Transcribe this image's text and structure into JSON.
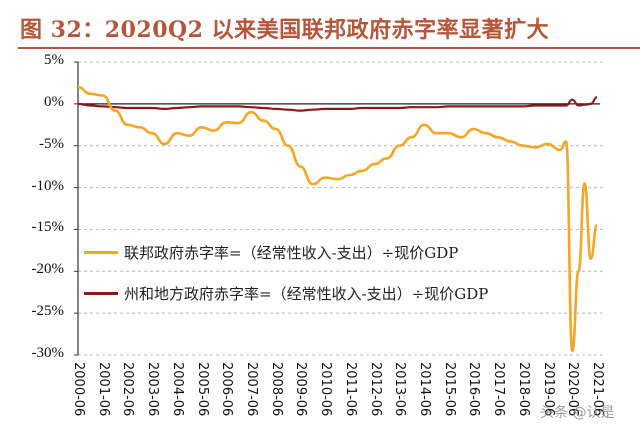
{
  "title": "图 32：2020Q2 以来美国联邦政府赤字率显著扩大",
  "watermark": "头条 @认是",
  "chart_data": {
    "type": "line",
    "title": "图 32：2020Q2 以来美国联邦政府赤字率显著扩大",
    "xlabel": "",
    "ylabel": "",
    "ylim": [
      -30,
      5
    ],
    "yticks": [
      "5%",
      "0%",
      "-5%",
      "-10%",
      "-15%",
      "-20%",
      "-25%",
      "-30%"
    ],
    "grid": true,
    "legend_position": "lower-left (inside plot)",
    "x_tick_labels": [
      "2000-06",
      "2001-06",
      "2002-06",
      "2003-06",
      "2004-06",
      "2005-06",
      "2006-06",
      "2007-06",
      "2008-06",
      "2009-06",
      "2010-06",
      "2011-06",
      "2012-06",
      "2013-06",
      "2014-06",
      "2015-06",
      "2016-06",
      "2017-06",
      "2018-06",
      "2019-06",
      "2020-06",
      "2021-06"
    ],
    "x": [
      "2000-06",
      "2000-12",
      "2001-06",
      "2001-12",
      "2002-06",
      "2002-12",
      "2003-06",
      "2003-12",
      "2004-06",
      "2004-12",
      "2005-06",
      "2005-12",
      "2006-06",
      "2006-12",
      "2007-06",
      "2007-12",
      "2008-06",
      "2008-12",
      "2009-06",
      "2009-12",
      "2010-06",
      "2010-12",
      "2011-06",
      "2011-12",
      "2012-06",
      "2012-12",
      "2013-06",
      "2013-12",
      "2014-06",
      "2014-12",
      "2015-06",
      "2015-12",
      "2016-06",
      "2016-12",
      "2017-06",
      "2017-12",
      "2018-06",
      "2018-12",
      "2019-06",
      "2019-12",
      "2020-03",
      "2020-06",
      "2020-09",
      "2020-12",
      "2021-03",
      "2021-06"
    ],
    "series": [
      {
        "name": "联邦政府赤字率=（经常性收入-支出）÷现价GDP",
        "color": "#f5a623",
        "values": [
          2.0,
          1.2,
          1.0,
          -0.8,
          -2.5,
          -2.8,
          -3.5,
          -4.8,
          -3.5,
          -3.8,
          -2.8,
          -3.2,
          -2.2,
          -2.3,
          -1.0,
          -2.0,
          -3.0,
          -5.0,
          -7.5,
          -9.6,
          -8.8,
          -9.0,
          -8.5,
          -8.0,
          -7.2,
          -6.5,
          -5.0,
          -4.0,
          -2.5,
          -3.5,
          -3.5,
          -4.0,
          -3.0,
          -3.5,
          -4.0,
          -4.5,
          -5.0,
          -5.2,
          -4.8,
          -5.5,
          -4.5,
          -29.5,
          -20.0,
          -9.5,
          -18.5,
          -14.5
        ]
      },
      {
        "name": "州和地方政府赤字率=（经常性收入-支出）÷现价GDP",
        "color": "#8b1a1a",
        "values": [
          0.0,
          -0.2,
          -0.3,
          -0.4,
          -0.5,
          -0.5,
          -0.5,
          -0.6,
          -0.5,
          -0.4,
          -0.3,
          -0.3,
          -0.3,
          -0.3,
          -0.4,
          -0.5,
          -0.6,
          -0.7,
          -0.8,
          -0.7,
          -0.6,
          -0.6,
          -0.6,
          -0.5,
          -0.5,
          -0.5,
          -0.5,
          -0.4,
          -0.4,
          -0.4,
          -0.3,
          -0.3,
          -0.3,
          -0.3,
          -0.3,
          -0.3,
          -0.3,
          -0.2,
          -0.2,
          -0.2,
          -0.2,
          0.5,
          -0.2,
          -0.1,
          0.0,
          0.8
        ]
      }
    ],
    "zero_line": true
  },
  "legend": [
    {
      "label": "联邦政府赤字率=（经常性收入-支出）÷现价GDP",
      "color": "#f5a623"
    },
    {
      "label": "州和地方政府赤字率=（经常性收入-支出）÷现价GDP",
      "color": "#8b1a1a"
    }
  ]
}
